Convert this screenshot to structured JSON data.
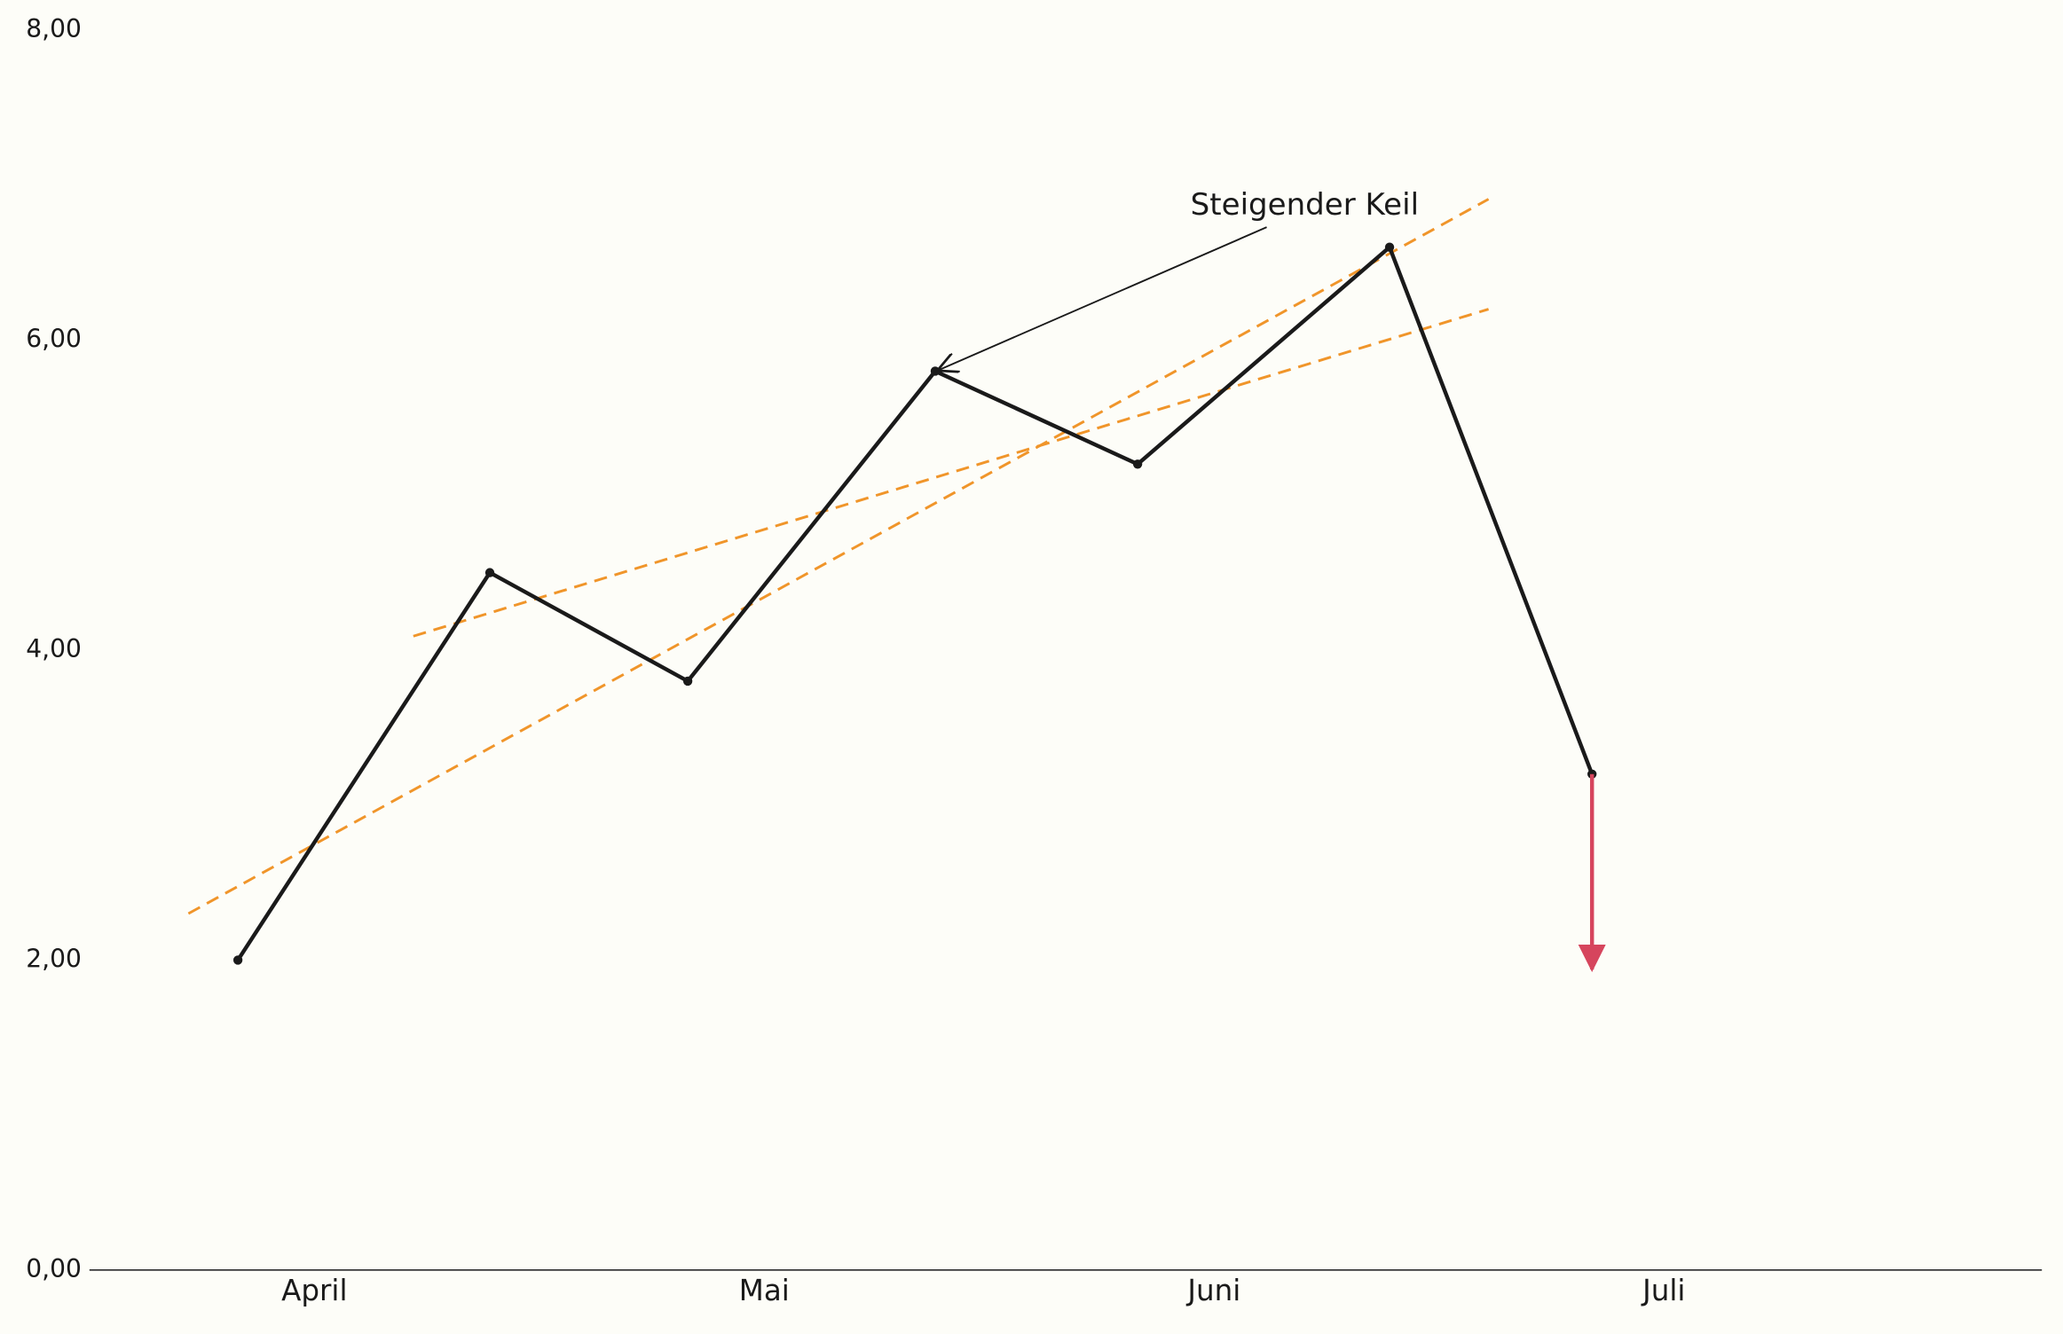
{
  "chart_data": {
    "type": "line",
    "annotation": "Steigender Keil",
    "x_is_month": true,
    "xlim": [
      3.5,
      7.84
    ],
    "xticks": [
      {
        "value": 4,
        "label": "April"
      },
      {
        "value": 5,
        "label": "Mai"
      },
      {
        "value": 6,
        "label": "Juni"
      },
      {
        "value": 7,
        "label": "Juli"
      }
    ],
    "ylim": [
      0,
      8
    ],
    "yticks": [
      {
        "value": 0,
        "label": "0,00"
      },
      {
        "value": 2,
        "label": "2,00"
      },
      {
        "value": 4,
        "label": "4,00"
      },
      {
        "value": 6,
        "label": "6,00"
      },
      {
        "value": 8,
        "label": "8,00"
      }
    ],
    "series": [
      {
        "color": "#1a1a1a",
        "x": [
          3.83,
          4.39,
          4.83,
          5.38,
          5.83,
          6.39,
          6.84
        ],
        "values": [
          2.0,
          4.5,
          3.8,
          5.8,
          5.2,
          6.6,
          3.2
        ]
      }
    ],
    "trendlines": [
      {
        "color": "#f0952a",
        "x": [
          3.72,
          6.61
        ],
        "values": [
          2.3,
          6.91
        ]
      },
      {
        "color": "#f0952a",
        "x": [
          4.22,
          6.61
        ],
        "values": [
          4.09,
          6.2
        ]
      }
    ],
    "projection": {
      "color": "#d6455d",
      "x": [
        6.84,
        6.84
      ],
      "values": [
        3.2,
        1.94
      ]
    }
  }
}
